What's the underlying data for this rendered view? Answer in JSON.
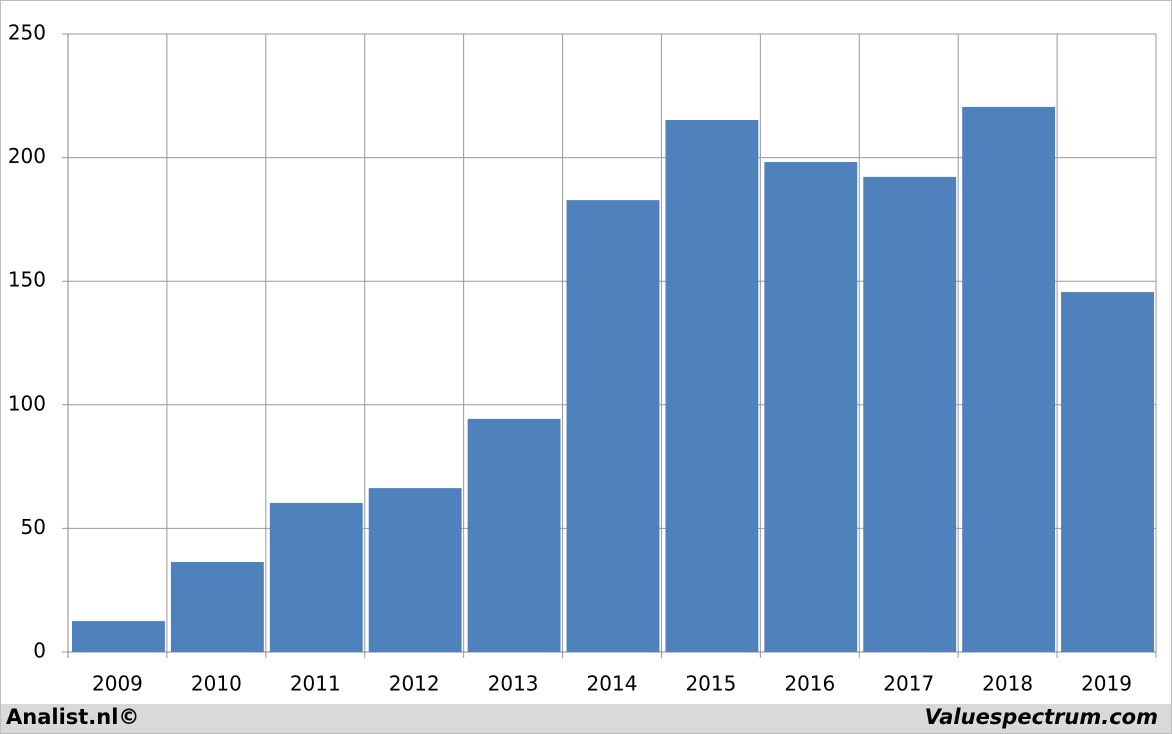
{
  "chart_data": {
    "type": "bar",
    "categories": [
      "2009",
      "2010",
      "2011",
      "2012",
      "2013",
      "2014",
      "2015",
      "2016",
      "2017",
      "2018",
      "2019"
    ],
    "values": [
      12.5,
      36.4,
      60.3,
      66.3,
      94.3,
      182.8,
      215.2,
      198.2,
      192.2,
      220.5,
      145.6
    ],
    "color": "#4f81bd",
    "ylim": [
      0,
      250
    ],
    "yticks": [
      0,
      50,
      100,
      150,
      200,
      250
    ],
    "grid": true
  },
  "footer": {
    "left": "Analist.nl©",
    "right": "Valuespectrum.com"
  }
}
